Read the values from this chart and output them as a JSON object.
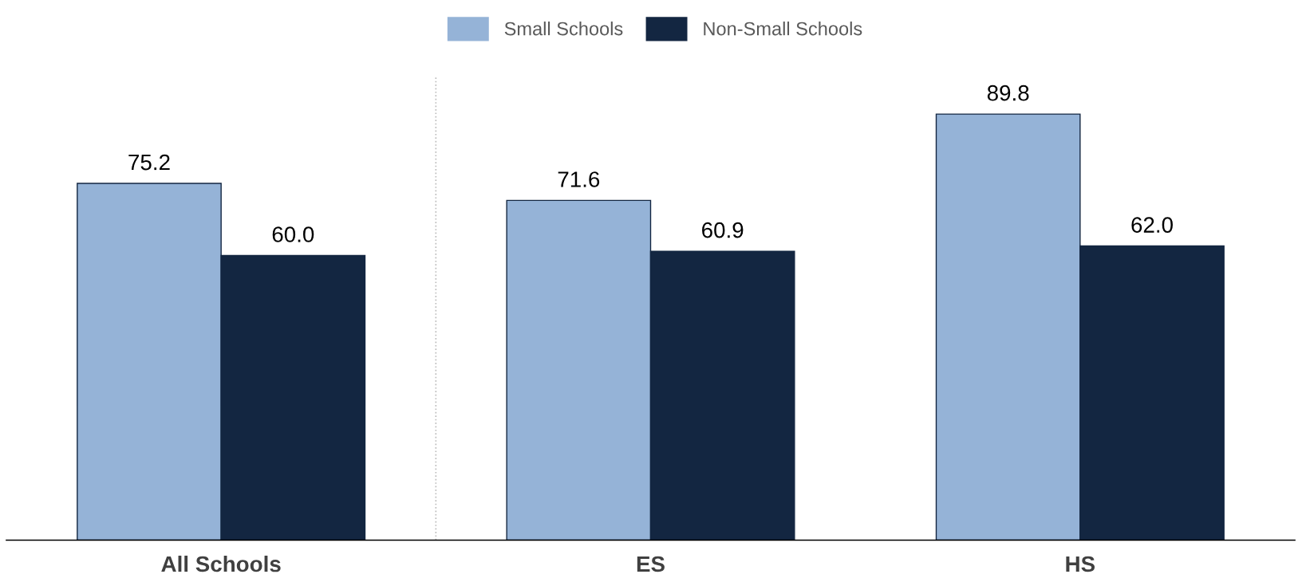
{
  "chart_data": {
    "type": "bar",
    "categories": [
      "All Schools",
      "ES",
      "HS"
    ],
    "series": [
      {
        "name": "Small Schools",
        "color": "#95b3d7",
        "values": [
          75.2,
          71.6,
          89.8
        ],
        "value_labels": [
          "75.2",
          "71.6",
          "89.8"
        ]
      },
      {
        "name": "Non-Small Schools",
        "color": "#132641",
        "values": [
          60.0,
          60.9,
          62.0
        ],
        "value_labels": [
          "60.0",
          "60.9",
          "62.0"
        ]
      }
    ],
    "legend": "top",
    "grid": false
  }
}
